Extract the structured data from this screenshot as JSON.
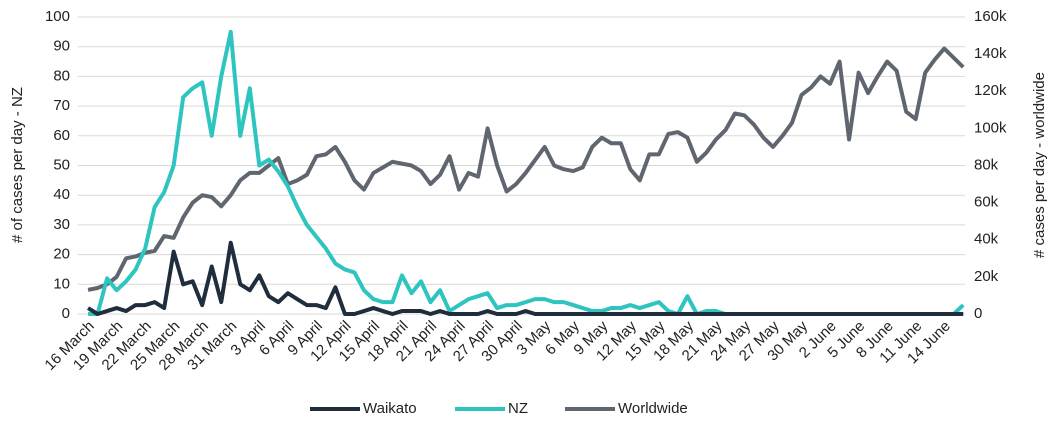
{
  "chart_data": {
    "type": "line",
    "categories": [
      "16 March",
      null,
      null,
      "19 March",
      null,
      null,
      "22 March",
      null,
      null,
      "25 March",
      null,
      null,
      "28 March",
      null,
      null,
      "31 March",
      null,
      null,
      "3 April",
      null,
      null,
      "6 April",
      null,
      null,
      "9 April",
      null,
      null,
      "12 April",
      null,
      null,
      "15 April",
      null,
      null,
      "18 April",
      null,
      null,
      "21 April",
      null,
      null,
      "24 April",
      null,
      null,
      "27 April",
      null,
      null,
      "30 April",
      null,
      null,
      "3 May",
      null,
      null,
      "6 May",
      null,
      null,
      "9 May",
      null,
      null,
      "12 May",
      null,
      null,
      "15 May",
      null,
      null,
      "18 May",
      null,
      null,
      "21 May",
      null,
      null,
      "24 May",
      null,
      null,
      "27 May",
      null,
      null,
      "30 May",
      null,
      null,
      "2 June",
      null,
      null,
      "5 June",
      null,
      null,
      "8 June",
      null,
      null,
      "11 June",
      null,
      null,
      "14 June",
      null,
      null
    ],
    "series": [
      {
        "name": "Waikato",
        "color": "#1f2d3d",
        "values": [
          2,
          0,
          1,
          2,
          1,
          3,
          3,
          4,
          2,
          21,
          10,
          11,
          3,
          16,
          4,
          24,
          10,
          8,
          13,
          6,
          4,
          7,
          5,
          3,
          3,
          2,
          9,
          0,
          0,
          1,
          2,
          1,
          0,
          1,
          1,
          1,
          0,
          1,
          0,
          0,
          0,
          0,
          1,
          0,
          0,
          0,
          1,
          0,
          0,
          0,
          0,
          0,
          0,
          0,
          0,
          0,
          0,
          0,
          0,
          0,
          0,
          0,
          0,
          0,
          0,
          0,
          0,
          0,
          0,
          0,
          0,
          0,
          0,
          0,
          0,
          0,
          0,
          0,
          0,
          0,
          0,
          0,
          0,
          0,
          0,
          0,
          0,
          0,
          0,
          0,
          0,
          0,
          0
        ]
      },
      {
        "name": "NZ",
        "color": "#2ec4c0",
        "values": [
          0,
          0,
          12,
          8,
          11,
          15,
          22,
          36,
          41,
          50,
          73,
          76,
          78,
          60,
          80,
          95,
          60,
          76,
          50,
          52,
          48,
          43,
          36,
          30,
          26,
          22,
          17,
          15,
          14,
          8,
          5,
          4,
          4,
          13,
          7,
          11,
          4,
          8,
          1,
          3,
          5,
          6,
          7,
          2,
          3,
          3,
          4,
          5,
          5,
          4,
          4,
          3,
          2,
          1,
          1,
          2,
          2,
          3,
          2,
          3,
          4,
          1,
          0,
          6,
          0,
          1,
          1,
          0,
          0,
          0,
          0,
          0,
          0,
          0,
          0,
          0,
          0,
          0,
          0,
          0,
          0,
          0,
          0,
          0,
          0,
          0,
          0,
          0,
          0,
          0,
          0,
          0,
          3
        ]
      },
      {
        "name": "Worldwide",
        "color": "#5f6670",
        "axis": "y2",
        "values": [
          13000,
          14000,
          16000,
          20000,
          30000,
          31000,
          33000,
          34000,
          42000,
          41000,
          52000,
          60000,
          64000,
          63000,
          58000,
          64000,
          72000,
          76000,
          76000,
          80000,
          84000,
          70000,
          72000,
          75000,
          85000,
          86000,
          90000,
          82000,
          72000,
          67000,
          76000,
          79000,
          82000,
          81000,
          80000,
          77000,
          70000,
          75000,
          85000,
          67000,
          76000,
          74000,
          100000,
          80000,
          66000,
          70000,
          76000,
          83000,
          90000,
          80000,
          78000,
          77000,
          79000,
          90000,
          95000,
          92000,
          92000,
          78000,
          72000,
          86000,
          86000,
          97000,
          98000,
          95000,
          82000,
          87000,
          94000,
          99000,
          108000,
          107000,
          102000,
          95000,
          90000,
          96000,
          103000,
          118000,
          122000,
          128000,
          124000,
          136000,
          94000,
          130000,
          119000,
          128000,
          136000,
          131000,
          109000,
          105000,
          130000,
          137000,
          143000,
          138000,
          133000
        ]
      }
    ],
    "y_label": "# of cases per day - NZ",
    "y2_label": "# cases per day - worldwide",
    "ylim": [
      0,
      100
    ],
    "yticks": [
      0,
      10,
      20,
      30,
      40,
      50,
      60,
      70,
      80,
      90,
      100
    ],
    "y2lim": [
      0,
      160000
    ],
    "y2ticks": [
      0,
      {
        "value": 20000,
        "label": "20k"
      },
      {
        "value": 40000,
        "label": "40k"
      },
      {
        "value": 60000,
        "label": "60k"
      },
      {
        "value": 80000,
        "label": "80k"
      },
      {
        "value": 100000,
        "label": "100k"
      },
      {
        "value": 120000,
        "label": "120k"
      },
      {
        "value": 140000,
        "label": "140k"
      },
      {
        "value": 160000,
        "label": "160k"
      }
    ],
    "grid": true,
    "legend": "bottom"
  }
}
